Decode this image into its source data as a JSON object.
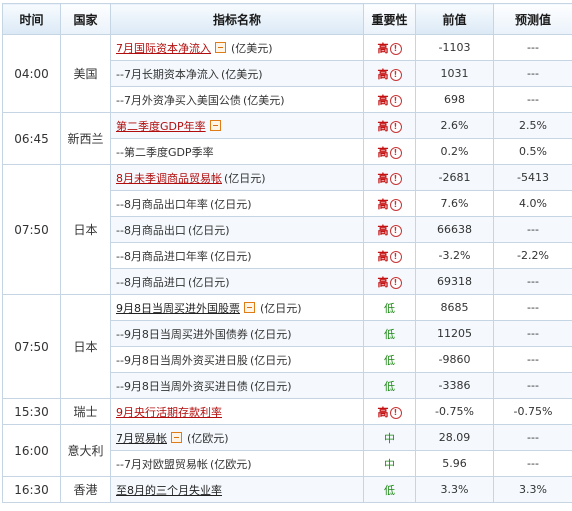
{
  "headers": {
    "time": "时间",
    "country": "国家",
    "indicator": "指标名称",
    "importance": "重要性",
    "previous": "前值",
    "forecast": "预测值"
  },
  "groups": [
    {
      "time": "04:00",
      "country": "美国",
      "rows": [
        {
          "name": "7月国际资本净流入",
          "unit": "(亿美元)",
          "main": true,
          "icon": true,
          "importance": "高",
          "level": "high",
          "previous": "-1103",
          "forecast": "---"
        },
        {
          "name": "--7月长期资本净流入",
          "unit": "(亿美元)",
          "main": false,
          "icon": false,
          "importance": "高",
          "level": "high",
          "previous": "1031",
          "forecast": "---"
        },
        {
          "name": "--7月外资净买入美国公债",
          "unit": "(亿美元)",
          "main": false,
          "icon": false,
          "importance": "高",
          "level": "high",
          "previous": "698",
          "forecast": "---"
        }
      ]
    },
    {
      "time": "06:45",
      "country": "新西兰",
      "rows": [
        {
          "name": "第二季度GDP年率",
          "unit": "",
          "main": true,
          "icon": true,
          "importance": "高",
          "level": "high",
          "previous": "2.6%",
          "forecast": "2.5%"
        },
        {
          "name": "--第二季度GDP季率",
          "unit": "",
          "main": false,
          "icon": false,
          "importance": "高",
          "level": "high",
          "previous": "0.2%",
          "forecast": "0.5%"
        }
      ]
    },
    {
      "time": "07:50",
      "country": "日本",
      "rows": [
        {
          "name": "8月未季调商品贸易帐",
          "unit": "(亿日元)",
          "main": true,
          "icon": false,
          "importance": "高",
          "level": "high",
          "previous": "-2681",
          "forecast": "-5413"
        },
        {
          "name": "--8月商品出口年率",
          "unit": "(亿日元)",
          "main": false,
          "icon": false,
          "importance": "高",
          "level": "high",
          "previous": "7.6%",
          "forecast": "4.0%"
        },
        {
          "name": "--8月商品出口",
          "unit": "(亿日元)",
          "main": false,
          "icon": false,
          "importance": "高",
          "level": "high",
          "previous": "66638",
          "forecast": "---"
        },
        {
          "name": "--8月商品进口年率",
          "unit": "(亿日元)",
          "main": false,
          "icon": false,
          "importance": "高",
          "level": "high",
          "previous": "-3.2%",
          "forecast": "-2.2%"
        },
        {
          "name": "--8月商品进口",
          "unit": "(亿日元)",
          "main": false,
          "icon": false,
          "importance": "高",
          "level": "high",
          "previous": "69318",
          "forecast": "---"
        }
      ]
    },
    {
      "time": "07:50",
      "country": "日本",
      "rows": [
        {
          "name": "9月8日当周买进外国股票",
          "unit": "(亿日元)",
          "main": true,
          "dark": true,
          "icon": true,
          "importance": "低",
          "level": "low",
          "previous": "8685",
          "forecast": "---"
        },
        {
          "name": "--9月8日当周买进外国债券",
          "unit": "(亿日元)",
          "main": false,
          "icon": false,
          "importance": "低",
          "level": "low",
          "previous": "11205",
          "forecast": "---"
        },
        {
          "name": "--9月8日当周外资买进日股",
          "unit": "(亿日元)",
          "main": false,
          "icon": false,
          "importance": "低",
          "level": "low",
          "previous": "-9860",
          "forecast": "---"
        },
        {
          "name": "--9月8日当周外资买进日债",
          "unit": "(亿日元)",
          "main": false,
          "icon": false,
          "importance": "低",
          "level": "low",
          "previous": "-3386",
          "forecast": "---"
        }
      ]
    },
    {
      "time": "15:30",
      "country": "瑞士",
      "rows": [
        {
          "name": "9月央行活期存款利率",
          "unit": "",
          "main": true,
          "icon": false,
          "importance": "高",
          "level": "high",
          "previous": "-0.75%",
          "forecast": "-0.75%"
        }
      ]
    },
    {
      "time": "16:00",
      "country": "意大利",
      "rows": [
        {
          "name": "7月贸易帐",
          "unit": "(亿欧元)",
          "main": true,
          "dark": true,
          "icon": true,
          "importance": "中",
          "level": "mid",
          "previous": "28.09",
          "forecast": "---"
        },
        {
          "name": "--7月对欧盟贸易帐",
          "unit": "(亿欧元)",
          "main": false,
          "icon": false,
          "importance": "中",
          "level": "mid",
          "previous": "5.96",
          "forecast": "---"
        }
      ]
    },
    {
      "time": "16:30",
      "country": "香港",
      "rows": [
        {
          "name": "至8月的三个月失业率",
          "unit": "",
          "main": true,
          "dark": true,
          "icon": false,
          "importance": "低",
          "level": "low",
          "previous": "3.3%",
          "forecast": "3.3%"
        }
      ]
    }
  ]
}
